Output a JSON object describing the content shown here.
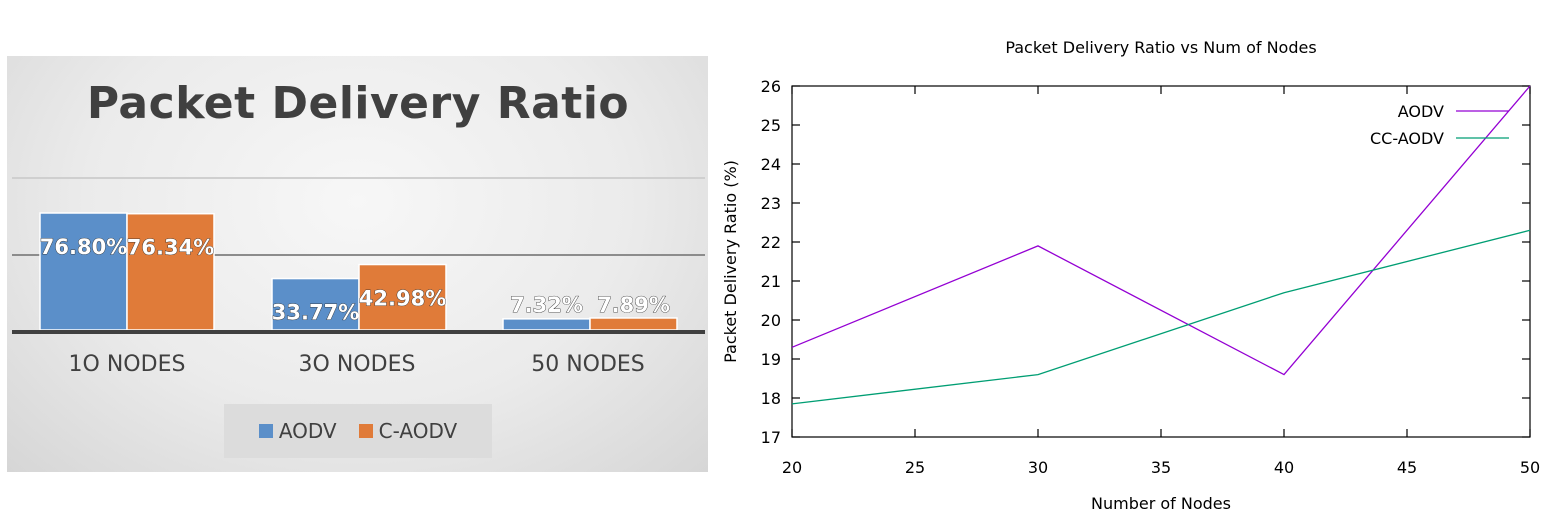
{
  "chart_data": [
    {
      "type": "bar",
      "title": "Packet Delivery Ratio",
      "categories": [
        "1O NODES",
        "3O NODES",
        "50 NODES"
      ],
      "series": [
        {
          "name": "AODV",
          "values": [
            76.8,
            33.77,
            7.32
          ],
          "labels": [
            "76.80%",
            "33.77%",
            "7.32%"
          ],
          "color": "#5b8fc9"
        },
        {
          "name": "C-AODV",
          "values": [
            76.34,
            42.98,
            7.89
          ],
          "labels": [
            "76.34%",
            "42.98%",
            "7.89%"
          ],
          "color": "#e07b39"
        }
      ],
      "legend": "bottom"
    },
    {
      "type": "line",
      "title": "Packet Delivery Ratio vs Num of Nodes",
      "xlabel": "Number of Nodes",
      "ylabel": "Packet Delivery Ratio (%)",
      "xlim": [
        20,
        50
      ],
      "ylim": [
        17,
        26
      ],
      "xticks": [
        20,
        25,
        30,
        35,
        40,
        45,
        50
      ],
      "yticks": [
        17,
        18,
        19,
        20,
        21,
        22,
        23,
        24,
        25,
        26
      ],
      "legend": "top-right",
      "series": [
        {
          "name": "AODV",
          "color": "#9400d3",
          "x": [
            20,
            30,
            40,
            50
          ],
          "y": [
            19.3,
            21.9,
            18.6,
            26.0
          ]
        },
        {
          "name": "CC-AODV",
          "color": "#009e73",
          "x": [
            20,
            30,
            40,
            50
          ],
          "y": [
            17.85,
            18.6,
            20.7,
            22.3
          ]
        }
      ]
    }
  ]
}
